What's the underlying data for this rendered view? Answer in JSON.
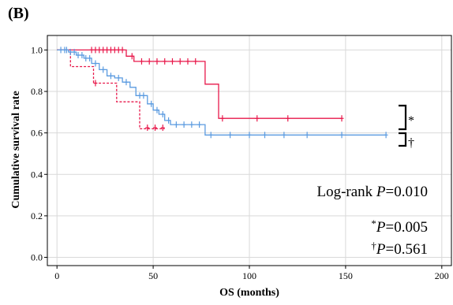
{
  "panel_label": "(B)",
  "chart_data": {
    "type": "line",
    "title": "",
    "xlabel": "OS (months)",
    "ylabel": "Cumulative survival rate",
    "xlim": [
      -5,
      205
    ],
    "ylim": [
      -0.04,
      1.07
    ],
    "x_ticks": [
      0,
      50,
      100,
      150,
      200
    ],
    "x_tick_labels": [
      "0",
      "50",
      "100",
      "150",
      "200"
    ],
    "y_ticks": [
      0.0,
      0.2,
      0.4,
      0.6,
      0.8,
      1.0
    ],
    "y_tick_labels": [
      "0.0",
      "0.2",
      "0.4",
      "0.6",
      "0.8",
      "1.0"
    ],
    "grid": true,
    "series": [
      {
        "color": "#e8194b",
        "style": "solid",
        "steps": [
          [
            0,
            1.0
          ],
          [
            36,
            1.0
          ],
          [
            36,
            0.97
          ],
          [
            40,
            0.97
          ],
          [
            40,
            0.945
          ],
          [
            77,
            0.945
          ],
          [
            77,
            0.835
          ],
          [
            84,
            0.835
          ],
          [
            84,
            0.67
          ],
          [
            148,
            0.67
          ]
        ],
        "censored": [
          [
            18,
            1.0
          ],
          [
            20,
            1.0
          ],
          [
            22,
            1.0
          ],
          [
            24,
            1.0
          ],
          [
            26,
            1.0
          ],
          [
            28,
            1.0
          ],
          [
            30,
            1.0
          ],
          [
            32,
            1.0
          ],
          [
            34,
            1.0
          ],
          [
            39,
            0.97
          ],
          [
            44,
            0.945
          ],
          [
            48,
            0.945
          ],
          [
            52,
            0.945
          ],
          [
            56,
            0.945
          ],
          [
            60,
            0.945
          ],
          [
            64,
            0.945
          ],
          [
            68,
            0.945
          ],
          [
            72,
            0.945
          ],
          [
            86,
            0.67
          ],
          [
            104,
            0.67
          ],
          [
            120,
            0.67
          ],
          [
            148,
            0.67
          ]
        ]
      },
      {
        "color": "#e8194b",
        "style": "dashed",
        "steps": [
          [
            0,
            1.0
          ],
          [
            7,
            1.0
          ],
          [
            7,
            0.92
          ],
          [
            19,
            0.92
          ],
          [
            19,
            0.84
          ],
          [
            31,
            0.84
          ],
          [
            31,
            0.75
          ],
          [
            43,
            0.75
          ],
          [
            43,
            0.62
          ],
          [
            56,
            0.62
          ]
        ],
        "censored": [
          [
            20,
            0.84
          ],
          [
            47,
            0.625
          ],
          [
            51,
            0.625
          ],
          [
            55,
            0.625
          ]
        ]
      },
      {
        "color": "#5b9be0",
        "style": "solid",
        "steps": [
          [
            0,
            1.0
          ],
          [
            6,
            1.0
          ],
          [
            6,
            0.99
          ],
          [
            10,
            0.99
          ],
          [
            10,
            0.975
          ],
          [
            14,
            0.975
          ],
          [
            14,
            0.96
          ],
          [
            18,
            0.96
          ],
          [
            18,
            0.935
          ],
          [
            22,
            0.935
          ],
          [
            22,
            0.905
          ],
          [
            26,
            0.905
          ],
          [
            26,
            0.875
          ],
          [
            30,
            0.875
          ],
          [
            30,
            0.865
          ],
          [
            34,
            0.865
          ],
          [
            34,
            0.845
          ],
          [
            38,
            0.845
          ],
          [
            38,
            0.82
          ],
          [
            41,
            0.82
          ],
          [
            41,
            0.78
          ],
          [
            47,
            0.78
          ],
          [
            47,
            0.74
          ],
          [
            50,
            0.74
          ],
          [
            50,
            0.71
          ],
          [
            53,
            0.71
          ],
          [
            53,
            0.69
          ],
          [
            56,
            0.69
          ],
          [
            56,
            0.66
          ],
          [
            59,
            0.66
          ],
          [
            59,
            0.64
          ],
          [
            77,
            0.64
          ],
          [
            77,
            0.59
          ],
          [
            171,
            0.59
          ]
        ],
        "censored": [
          [
            2,
            1.0
          ],
          [
            4,
            1.0
          ],
          [
            5,
            1.0
          ],
          [
            7,
            0.99
          ],
          [
            9,
            0.99
          ],
          [
            11,
            0.975
          ],
          [
            13,
            0.975
          ],
          [
            15,
            0.96
          ],
          [
            17,
            0.96
          ],
          [
            20,
            0.935
          ],
          [
            24,
            0.905
          ],
          [
            28,
            0.875
          ],
          [
            32,
            0.865
          ],
          [
            36,
            0.845
          ],
          [
            43,
            0.78
          ],
          [
            45,
            0.78
          ],
          [
            49,
            0.74
          ],
          [
            52,
            0.71
          ],
          [
            55,
            0.69
          ],
          [
            58,
            0.66
          ],
          [
            62,
            0.64
          ],
          [
            66,
            0.64
          ],
          [
            70,
            0.64
          ],
          [
            74,
            0.64
          ],
          [
            80,
            0.59
          ],
          [
            90,
            0.59
          ],
          [
            100,
            0.59
          ],
          [
            108,
            0.59
          ],
          [
            118,
            0.59
          ],
          [
            130,
            0.59
          ],
          [
            148,
            0.59
          ],
          [
            171,
            0.59
          ]
        ]
      }
    ],
    "annotations": {
      "logrank": {
        "prefix": "Log-rank ",
        "p": "P",
        "value": "=0.010"
      },
      "star": {
        "mark": "*",
        "p": "P",
        "value": "=0.005"
      },
      "dagger": {
        "mark": "†",
        "p": "P",
        "value": "=0.561"
      },
      "bracket_star": "*",
      "bracket_dagger": "†"
    }
  }
}
